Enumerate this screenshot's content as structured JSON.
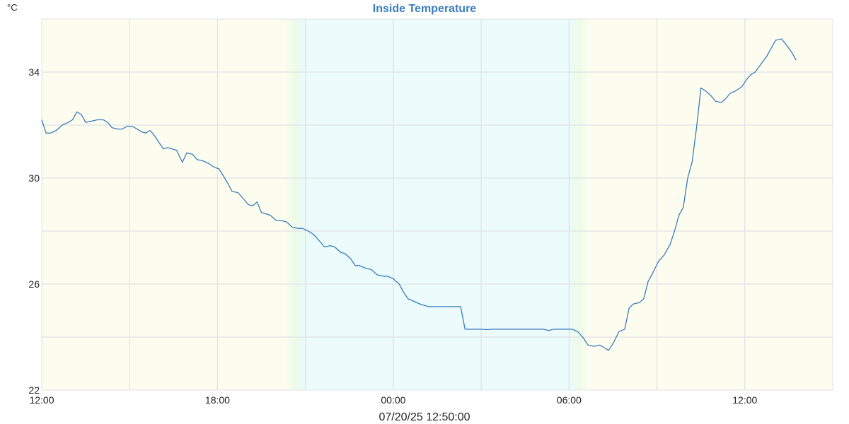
{
  "chart_data": {
    "type": "line",
    "title": "Inside Temperature",
    "unit_label": "°C",
    "xlabel": "07/20/25 12:50:00",
    "ylim": [
      22,
      36
    ],
    "y_ticks": [
      22,
      26,
      30,
      34
    ],
    "x_range_hours": [
      0,
      27
    ],
    "x_ticks": [
      {
        "h": 0,
        "label": "12:00"
      },
      {
        "h": 6,
        "label": "18:00"
      },
      {
        "h": 12,
        "label": "00:00"
      },
      {
        "h": 18,
        "label": "06:00"
      },
      {
        "h": 24,
        "label": "12:00"
      }
    ],
    "x_grid_hours": [
      3,
      6,
      9,
      12,
      15,
      18,
      21,
      24
    ],
    "y_grid": [
      24,
      26,
      28,
      30,
      32,
      34
    ],
    "grid": true,
    "colors": {
      "line": "#3a7bbf",
      "title": "#3b7ec0",
      "day_background": "#fdfdef",
      "night_background": "#ecfbfb",
      "twilight": "#ecfbe8",
      "grid": "#dfe3e6"
    },
    "shading": {
      "sunset_start_h": 8.3,
      "night_start_h": 9.0,
      "night_end_h": 18.0,
      "sunrise_end_h": 18.7
    },
    "series": [
      {
        "values": [
          [
            0.0,
            32.2
          ],
          [
            0.15,
            31.7
          ],
          [
            0.3,
            31.7
          ],
          [
            0.5,
            31.8
          ],
          [
            0.7,
            32.0
          ],
          [
            0.9,
            32.1
          ],
          [
            1.05,
            32.2
          ],
          [
            1.2,
            32.5
          ],
          [
            1.35,
            32.4
          ],
          [
            1.5,
            32.1
          ],
          [
            1.7,
            32.15
          ],
          [
            1.9,
            32.2
          ],
          [
            2.1,
            32.2
          ],
          [
            2.25,
            32.1
          ],
          [
            2.4,
            31.9
          ],
          [
            2.6,
            31.85
          ],
          [
            2.75,
            31.85
          ],
          [
            2.9,
            31.95
          ],
          [
            3.1,
            31.95
          ],
          [
            3.25,
            31.85
          ],
          [
            3.4,
            31.75
          ],
          [
            3.55,
            31.7
          ],
          [
            3.7,
            31.8
          ],
          [
            3.85,
            31.6
          ],
          [
            4.0,
            31.35
          ],
          [
            4.15,
            31.1
          ],
          [
            4.3,
            31.15
          ],
          [
            4.45,
            31.1
          ],
          [
            4.6,
            31.05
          ],
          [
            4.8,
            30.6
          ],
          [
            4.95,
            30.95
          ],
          [
            5.15,
            30.9
          ],
          [
            5.3,
            30.7
          ],
          [
            5.5,
            30.65
          ],
          [
            5.7,
            30.55
          ],
          [
            5.9,
            30.4
          ],
          [
            6.05,
            30.35
          ],
          [
            6.3,
            29.9
          ],
          [
            6.5,
            29.5
          ],
          [
            6.7,
            29.45
          ],
          [
            6.9,
            29.2
          ],
          [
            7.05,
            29.0
          ],
          [
            7.2,
            28.95
          ],
          [
            7.35,
            29.1
          ],
          [
            7.5,
            28.7
          ],
          [
            7.65,
            28.65
          ],
          [
            7.8,
            28.6
          ],
          [
            8.0,
            28.4
          ],
          [
            8.15,
            28.4
          ],
          [
            8.35,
            28.35
          ],
          [
            8.55,
            28.15
          ],
          [
            8.75,
            28.1
          ],
          [
            8.9,
            28.1
          ],
          [
            9.1,
            28.0
          ],
          [
            9.3,
            27.85
          ],
          [
            9.5,
            27.6
          ],
          [
            9.65,
            27.4
          ],
          [
            9.85,
            27.45
          ],
          [
            10.0,
            27.4
          ],
          [
            10.2,
            27.2
          ],
          [
            10.35,
            27.15
          ],
          [
            10.55,
            26.95
          ],
          [
            10.7,
            26.7
          ],
          [
            10.85,
            26.7
          ],
          [
            11.05,
            26.6
          ],
          [
            11.25,
            26.55
          ],
          [
            11.45,
            26.35
          ],
          [
            11.65,
            26.3
          ],
          [
            11.8,
            26.3
          ],
          [
            12.0,
            26.2
          ],
          [
            12.2,
            26.0
          ],
          [
            12.35,
            25.7
          ],
          [
            12.5,
            25.45
          ],
          [
            12.7,
            25.35
          ],
          [
            12.9,
            25.25
          ],
          [
            13.2,
            25.15
          ],
          [
            13.5,
            25.15
          ],
          [
            13.8,
            25.15
          ],
          [
            14.1,
            25.15
          ],
          [
            14.3,
            25.15
          ],
          [
            14.45,
            24.3
          ],
          [
            14.7,
            24.3
          ],
          [
            14.95,
            24.3
          ],
          [
            15.2,
            24.28
          ],
          [
            15.4,
            24.3
          ],
          [
            15.7,
            24.3
          ],
          [
            16.0,
            24.3
          ],
          [
            16.3,
            24.3
          ],
          [
            16.6,
            24.3
          ],
          [
            16.9,
            24.3
          ],
          [
            17.1,
            24.3
          ],
          [
            17.3,
            24.25
          ],
          [
            17.5,
            24.3
          ],
          [
            17.8,
            24.3
          ],
          [
            18.1,
            24.3
          ],
          [
            18.3,
            24.2
          ],
          [
            18.5,
            23.95
          ],
          [
            18.65,
            23.7
          ],
          [
            18.85,
            23.65
          ],
          [
            19.05,
            23.7
          ],
          [
            19.2,
            23.6
          ],
          [
            19.35,
            23.5
          ],
          [
            19.5,
            23.75
          ],
          [
            19.7,
            24.2
          ],
          [
            19.9,
            24.3
          ],
          [
            20.05,
            25.1
          ],
          [
            20.2,
            25.25
          ],
          [
            20.4,
            25.3
          ],
          [
            20.55,
            25.45
          ],
          [
            20.7,
            26.1
          ],
          [
            20.85,
            26.4
          ],
          [
            21.05,
            26.85
          ],
          [
            21.25,
            27.1
          ],
          [
            21.45,
            27.5
          ],
          [
            21.6,
            28.0
          ],
          [
            21.75,
            28.6
          ],
          [
            21.9,
            28.9
          ],
          [
            22.05,
            30.0
          ],
          [
            22.2,
            30.6
          ],
          [
            22.35,
            31.9
          ],
          [
            22.5,
            33.4
          ],
          [
            22.65,
            33.3
          ],
          [
            22.85,
            33.1
          ],
          [
            23.0,
            32.9
          ],
          [
            23.2,
            32.85
          ],
          [
            23.35,
            33.0
          ],
          [
            23.5,
            33.2
          ],
          [
            23.7,
            33.3
          ],
          [
            23.9,
            33.45
          ],
          [
            24.05,
            33.7
          ],
          [
            24.2,
            33.9
          ],
          [
            24.35,
            34.0
          ],
          [
            24.55,
            34.3
          ],
          [
            24.75,
            34.6
          ],
          [
            24.9,
            34.9
          ],
          [
            25.05,
            35.2
          ],
          [
            25.25,
            35.25
          ],
          [
            25.4,
            35.05
          ],
          [
            25.6,
            34.75
          ],
          [
            25.75,
            34.45
          ]
        ]
      }
    ]
  }
}
